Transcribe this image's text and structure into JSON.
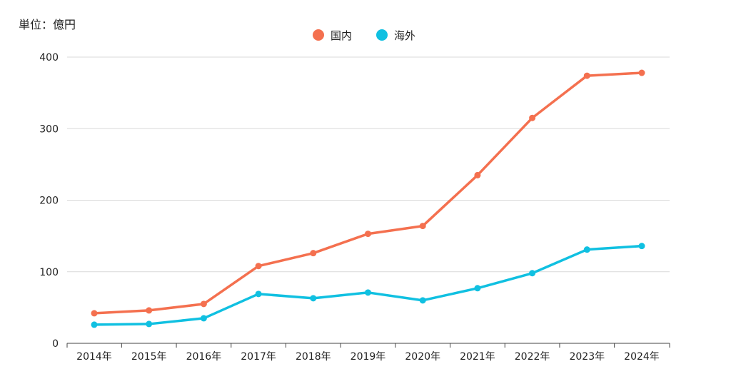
{
  "chart_data": {
    "type": "line",
    "unit_label": "単位：億円",
    "categories": [
      "2014年",
      "2015年",
      "2016年",
      "2017年",
      "2018年",
      "2019年",
      "2020年",
      "2021年",
      "2022年",
      "2023年",
      "2024年"
    ],
    "series": [
      {
        "name": "国内",
        "color": "#F4704F",
        "values": [
          42,
          46,
          55,
          108,
          126,
          153,
          164,
          235,
          315,
          374,
          378
        ]
      },
      {
        "name": "海外",
        "color": "#10C0E1",
        "values": [
          26,
          27,
          35,
          69,
          63,
          71,
          60,
          77,
          98,
          131,
          136
        ]
      }
    ],
    "ylim": [
      0,
      400
    ],
    "yticks": [
      0,
      100,
      200,
      300,
      400
    ],
    "grid": true,
    "legend_position": "top-center",
    "axis_color": "#444444",
    "grid_color": "#D9D9D9"
  }
}
